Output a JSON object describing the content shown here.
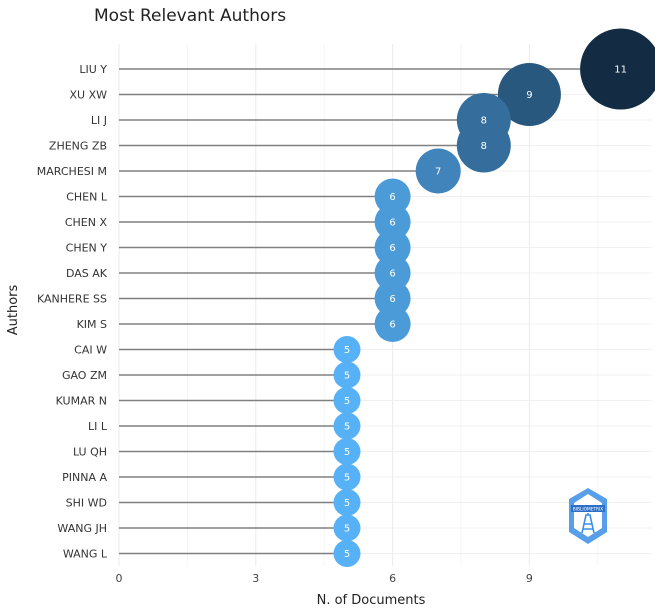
{
  "chart_data": {
    "type": "scatter",
    "title": "Most Relevant Authors",
    "xlabel": "N. of Documents",
    "ylabel": "Authors",
    "xlim": [
      0,
      11
    ],
    "xticks": [
      0,
      3,
      6,
      9
    ],
    "grid": true,
    "authors": [
      "LIU Y",
      "XU XW",
      "LI J",
      "ZHENG ZB",
      "MARCHESI M",
      "CHEN L",
      "CHEN X",
      "CHEN Y",
      "DAS AK",
      "KANHERE SS",
      "KIM S",
      "CAI W",
      "GAO ZM",
      "KUMAR N",
      "LI L",
      "LU QH",
      "PINNA A",
      "SHI WD",
      "WANG JH",
      "WANG L"
    ],
    "values": [
      11,
      9,
      8,
      8,
      7,
      6,
      6,
      6,
      6,
      6,
      6,
      5,
      5,
      5,
      5,
      5,
      5,
      5,
      5,
      5
    ],
    "color_scale": {
      "min_color": "#56B1F7",
      "max_color": "#132B43"
    },
    "line_color": "#808080"
  },
  "logo": {
    "text": "BIBLIOMETRIX",
    "color": "#3a8ee6"
  }
}
